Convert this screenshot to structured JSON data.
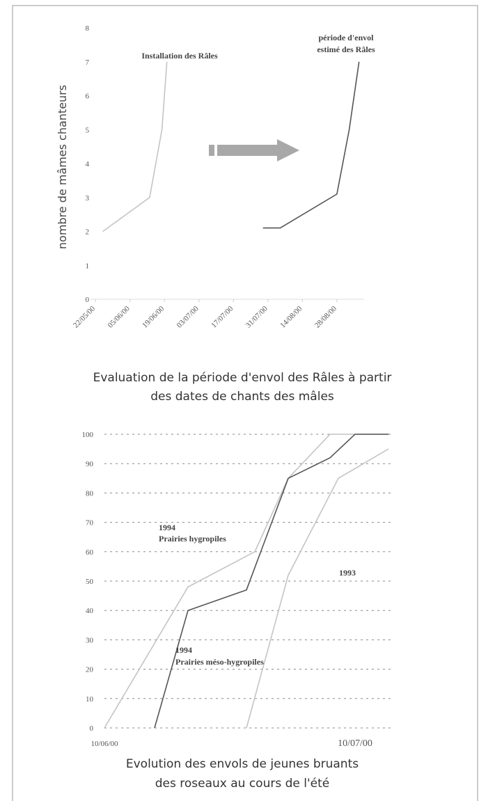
{
  "chart_data": [
    {
      "type": "line",
      "title": [
        "Evaluation de la période d'envol des Râles à partir",
        "des dates de chants des mâles"
      ],
      "y_label": "nombre de mâmes chanteurs",
      "xlim": [
        "2000-05-20",
        "2000-09-08"
      ],
      "xticks": [
        {
          "value": "2000-05-22",
          "label": "22/05/00"
        },
        {
          "value": "2000-06-05",
          "label": "05/06/00"
        },
        {
          "value": "2000-06-19",
          "label": "19/06/00"
        },
        {
          "value": "2000-07-03",
          "label": "03/07/00"
        },
        {
          "value": "2000-07-17",
          "label": "17/07/00"
        },
        {
          "value": "2000-07-31",
          "label": "31/07/00"
        },
        {
          "value": "2000-08-14",
          "label": "14/08/00"
        },
        {
          "value": "2000-08-28",
          "label": "28/08/00"
        }
      ],
      "ylim": [
        0,
        8
      ],
      "yticks": [
        0,
        1,
        2,
        3,
        4,
        5,
        6,
        7,
        8
      ],
      "grid": false,
      "series": [
        {
          "color": "#c4c4c4",
          "x": [
            "2000-05-25",
            "2000-06-13",
            "2000-06-18",
            "2000-06-20"
          ],
          "values": [
            2,
            3,
            5,
            7
          ]
        },
        {
          "color": "#555555",
          "x": [
            "2000-07-29",
            "2000-08-05",
            "2000-08-28",
            "2000-09-02",
            "2000-09-06"
          ],
          "values": [
            2.1,
            2.1,
            3.1,
            5,
            7
          ]
        }
      ],
      "annotations": [
        "Installation des Râles",
        "période d'envol",
        "estimé des Râles"
      ]
    },
    {
      "type": "line",
      "title": [
        "Evolution des envols de jeunes bruants",
        "des roseaux au cours de l'été"
      ],
      "xlim": [
        "2000-06-10",
        "2000-07-14"
      ],
      "xticks": [
        {
          "value": "2000-06-10",
          "label": "10/06/00"
        },
        {
          "value": "2000-07-10",
          "label": "10/07/00"
        }
      ],
      "ylim": [
        0,
        100
      ],
      "yticks": [
        0,
        10,
        20,
        30,
        40,
        50,
        60,
        70,
        80,
        90,
        100
      ],
      "grid": true,
      "series": [
        {
          "color": "#c4c4c4",
          "x": [
            "2000-06-10",
            "2000-06-20",
            "2000-06-28",
            "2000-07-02",
            "2000-07-07",
            "2000-07-14"
          ],
          "values": [
            0,
            48,
            60,
            85,
            100,
            100
          ]
        },
        {
          "color": "#555555",
          "x": [
            "2000-06-16",
            "2000-06-20",
            "2000-06-27",
            "2000-07-02",
            "2000-07-07",
            "2000-07-10",
            "2000-07-14"
          ],
          "values": [
            0,
            40,
            47,
            85,
            92,
            100,
            100
          ]
        },
        {
          "color": "#c4c4c4",
          "x": [
            "2000-06-27",
            "2000-07-02",
            "2000-07-08",
            "2000-07-14"
          ],
          "values": [
            0,
            52,
            85,
            95
          ]
        }
      ],
      "annotations": [
        "1994",
        "Prairies hygropiles",
        "1994",
        "Prairies méso-hygropiles",
        "1993"
      ]
    }
  ]
}
